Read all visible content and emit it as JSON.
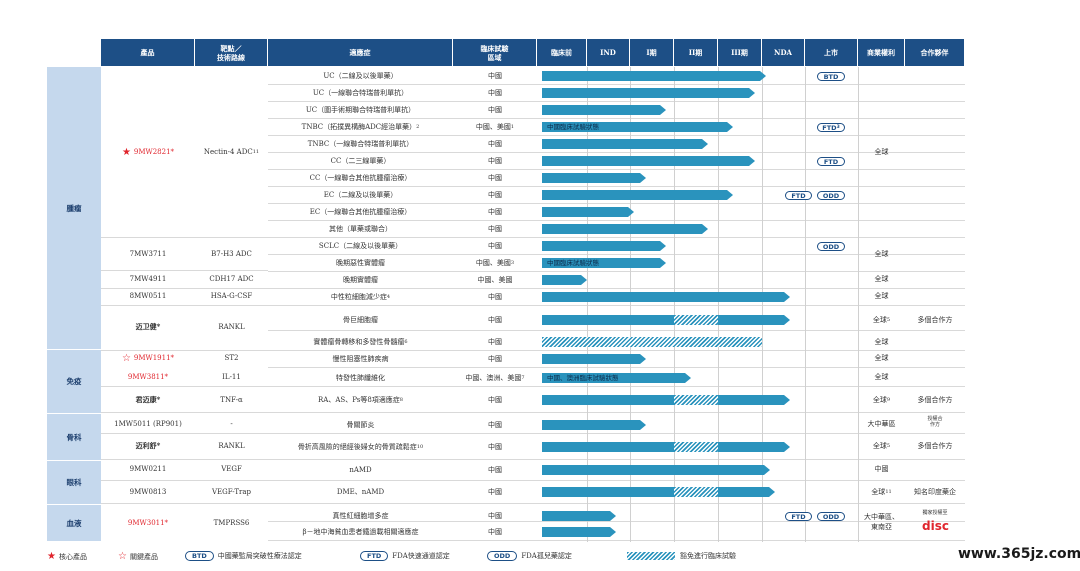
{
  "headers": {
    "product": "產品",
    "target": "靶點／\n技術路線",
    "indication": "適應症",
    "region": "臨床試驗\n區域",
    "preclinical": "臨床前",
    "ind": "IND",
    "p1": "I期",
    "p2": "II期",
    "p3": "III期",
    "nda": "NDA",
    "market": "上市",
    "rights": "商業權利",
    "partner": "合作夥伴"
  },
  "categories": {
    "tumor": "腫瘤",
    "immune": "免疫",
    "bone": "骨科",
    "eye": "眼科",
    "blood": "血液"
  },
  "products": {
    "p9mw2821": "9MW2821*",
    "t9mw2821": "Nectin-4 ADC",
    "t9mw2821_sup": "11",
    "p7mw3711": "7MW3711",
    "t7mw3711": "B7-H3 ADC",
    "p7mw4911": "7MW4911",
    "t7mw4911": "CDH17 ADC",
    "p8mw0511": "8MW0511",
    "t8mw0511": "HSA-G-CSF",
    "pmaiwei": "迈卫健*",
    "tmaiwei": "RANKL",
    "p9mw1911": "9MW1911*",
    "t9mw1911": "ST2",
    "p9mw3811": "9MW3811*",
    "t9mw3811": "IL-11",
    "pjunmai": "君迈康*",
    "tjunmai": "TNF-α",
    "p1mw5011": "1MW5011 (RP901)",
    "t1mw5011": "-",
    "pmaili": "迈利舒*",
    "tmaili": "RANKL",
    "p9mw0211": "9MW0211",
    "t9mw0211": "VEGF",
    "p9mw0813": "9MW0813",
    "t9mw0813": "VEGF-Trap",
    "p9mw3011": "9MW3011*",
    "t9mw3011": "TMPRSS6"
  },
  "rows": [
    {
      "ind": "UC（二線及以後單藥）",
      "region": "中國",
      "bar": 0.905,
      "pill": "BTD"
    },
    {
      "ind": "UC（一線聯合特瑞普利單抗）",
      "region": "中國",
      "bar": 0.86
    },
    {
      "ind": "UC（圍手術期聯合特瑞普利單抗）",
      "region": "中國",
      "bar": 0.5
    },
    {
      "ind": "TNBC（拓撲異構酶ADC經治單藥）",
      "ind_sup": "2",
      "region": "中國、美國",
      "region_sup": "1",
      "bar": 0.77,
      "label": "中國臨床試驗狀態",
      "pill": "FTD",
      "pill_sup": "3"
    },
    {
      "ind": "TNBC（一線聯合特瑞普利單抗）",
      "region": "中國",
      "bar": 0.67
    },
    {
      "ind": "CC（二三線單藥）",
      "region": "中國",
      "bar": 0.86,
      "pill": "FTD"
    },
    {
      "ind": "CC（一線聯合其他抗腫瘤治療）",
      "region": "中國",
      "bar": 0.42
    },
    {
      "ind": "EC（二線及以後單藥）",
      "region": "中國",
      "bar": 0.77,
      "pill": "FTD",
      "pill2": "ODD"
    },
    {
      "ind": "EC（一線聯合其他抗腫瘤治療）",
      "region": "中國",
      "bar": 0.37
    },
    {
      "ind": "其他（單藥或聯合）",
      "region": "中國",
      "bar": 0.67
    },
    {
      "ind": "SCLC（二線及以後單藥）",
      "region": "中國",
      "bar": 0.5,
      "pill2": "ODD"
    },
    {
      "ind": "晚期惡性實體瘤",
      "region": "中國、美國",
      "region_sup": "3",
      "bar": 0.5,
      "label": "中國臨床試驗狀態"
    },
    {
      "ind": "晚期實體瘤",
      "region": "中國、美國",
      "bar": 0.18
    },
    {
      "ind": "中性粒細胞減少症",
      "ind_sup": "4",
      "region": "中國",
      "bar": 1.0
    },
    {
      "ind": "骨巨細胞瘤",
      "region": "中國",
      "bar": 1.0,
      "hatch": "p3"
    },
    {
      "ind": "實體瘤骨轉移和多發性骨髓瘤",
      "ind_sup": "6",
      "region": "中國",
      "bar": 0.0,
      "hatchall": true
    },
    {
      "ind": "慢性阻塞性肺疾病",
      "region": "中國",
      "bar": 0.42
    },
    {
      "ind": "特發性肺纖維化",
      "region": "中國、澳洲、美國",
      "region_sup": "7",
      "bar": 0.6,
      "label": "中國、澳洲臨床試驗狀態"
    },
    {
      "ind": "RA、AS、Ps等8項適應症",
      "ind_sup": "8",
      "region": "中國",
      "bar": 1.0,
      "hatch": "p3"
    },
    {
      "ind": "骨關節炎",
      "region": "中國",
      "bar": 0.42
    },
    {
      "ind": "骨折高風險的絕經後婦女的骨質疏鬆症",
      "ind_sup": "10",
      "region": "中國",
      "bar": 1.0,
      "hatch": "p3"
    },
    {
      "ind": "nAMD",
      "region": "中國",
      "bar": 0.92
    },
    {
      "ind": "DME、nAMD",
      "region": "中國",
      "bar": 0.94,
      "hatch": "p3"
    },
    {
      "ind": "真性紅細胞增多症",
      "region": "中國",
      "bar": 0.3,
      "pill": "FTD",
      "pill2": "ODD"
    },
    {
      "ind": "β－地中海貧血患者鐵過載相關適應症",
      "region": "中國",
      "bar": 0.3
    }
  ],
  "rights": {
    "global": "全球",
    "global5": "全球",
    "sup5": "5",
    "global9": "全球",
    "sup9": "9",
    "global11": "全球",
    "sup11": "11",
    "china": "中國",
    "greater_china": "大中華區",
    "gc_sea": "大中華區、\n東南亞"
  },
  "partners": {
    "multi": "多個合作方",
    "india": "知名印度藥企",
    "rp901": "授權合\n作方",
    "disc": "獨家授權至",
    "disc_logo": "disc"
  },
  "legend": {
    "core": "核心產品",
    "key": "關鍵產品",
    "btd": "BTD",
    "btd_text": "中國藥監局突破性療法認定",
    "ftd": "FTD",
    "ftd_text": "FDA快速通道認定",
    "odd": "ODD",
    "odd_text": "FDA孤兒藥認定",
    "hatch_text": "豁免進行臨床試驗"
  },
  "watermark": "www.365jz.com",
  "colors": {
    "header": "#1d4f86",
    "bar": "#2a93bd",
    "red": "#e0252d",
    "category": "#c5d8ed"
  }
}
